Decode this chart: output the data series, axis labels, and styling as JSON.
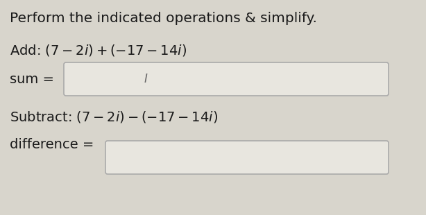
{
  "title": "Perform the indicated operations & simplify.",
  "title_fontsize": 14.5,
  "add_label": "Add: $(7 - 2i) + (-17 - 14i)$",
  "add_fontsize": 14,
  "sum_label": "sum =",
  "sum_fontsize": 14,
  "subtract_label": "Subtract: $(7 - 2i) - (-17 - 14i)$",
  "subtract_fontsize": 14,
  "diff_label": "difference =",
  "diff_fontsize": 14,
  "bg_color": "#d8d5cc",
  "box_fill": "#e8e6df",
  "box_edge": "#aaaaaa",
  "text_color": "#1a1a1a",
  "cursor_char": "I",
  "cursor_fontsize": 12
}
